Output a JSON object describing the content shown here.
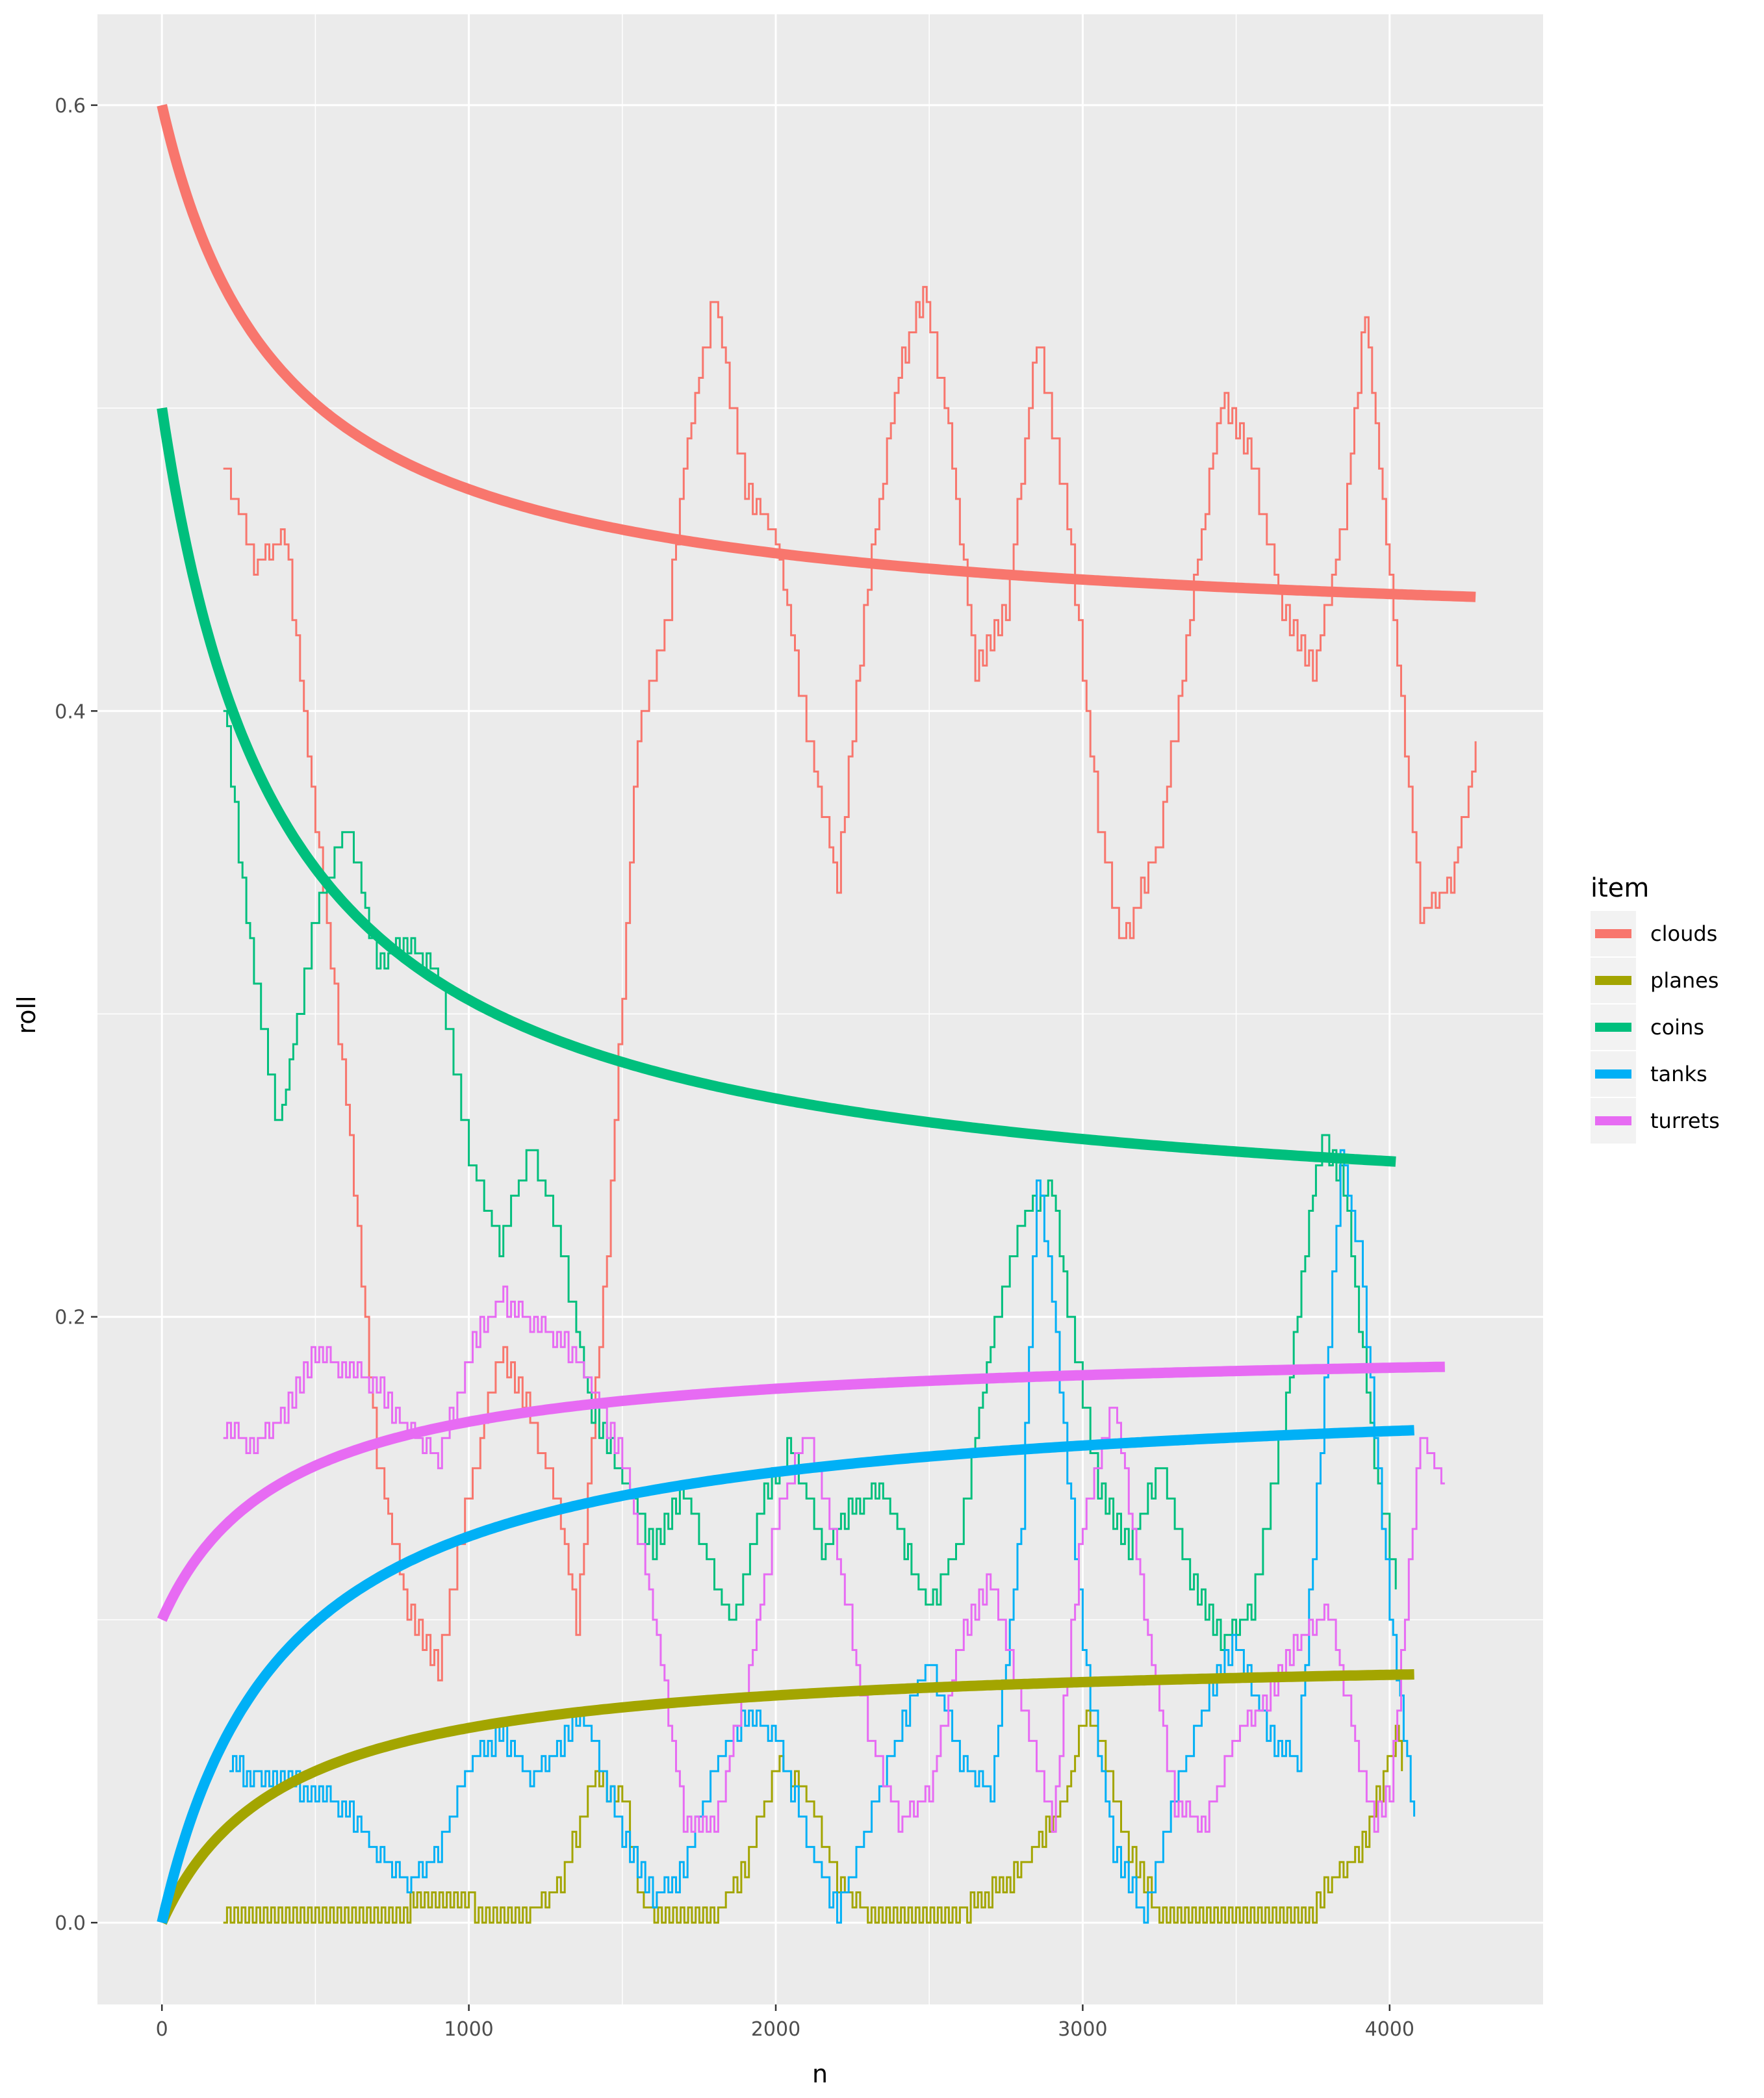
{
  "chart_data": {
    "type": "line",
    "xlabel": "n",
    "ylabel": "roll",
    "xlim": [
      -210,
      4500
    ],
    "ylim": [
      -0.027,
      0.63
    ],
    "x_ticks": [
      0,
      1000,
      2000,
      3000,
      4000
    ],
    "x_tick_labels": [
      "0",
      "1000",
      "2000",
      "3000",
      "4000"
    ],
    "y_ticks": [
      0.0,
      0.2,
      0.4,
      0.6
    ],
    "y_tick_labels": [
      "0.0",
      "0.2",
      "0.4",
      "0.6"
    ],
    "grid": true,
    "legend": {
      "title": "item",
      "position": "right"
    },
    "series": [
      {
        "name": "clouds",
        "color": "#F8766D",
        "expected": {
          "start": 0,
          "end": 4280,
          "final": 0.4225,
          "initial": 0.6,
          "k": 400
        },
        "rolling": [
          [
            200,
            0.48
          ],
          [
            300,
            0.445
          ],
          [
            400,
            0.455
          ],
          [
            500,
            0.36
          ],
          [
            600,
            0.27
          ],
          [
            700,
            0.15
          ],
          [
            800,
            0.1
          ],
          [
            900,
            0.08
          ],
          [
            1000,
            0.14
          ],
          [
            1100,
            0.185
          ],
          [
            1200,
            0.165
          ],
          [
            1300,
            0.13
          ],
          [
            1350,
            0.095
          ],
          [
            1450,
            0.22
          ],
          [
            1550,
            0.39
          ],
          [
            1650,
            0.43
          ],
          [
            1700,
            0.48
          ],
          [
            1800,
            0.535
          ],
          [
            1900,
            0.47
          ],
          [
            2000,
            0.455
          ],
          [
            2100,
            0.39
          ],
          [
            2200,
            0.34
          ],
          [
            2300,
            0.44
          ],
          [
            2400,
            0.51
          ],
          [
            2480,
            0.535
          ],
          [
            2550,
            0.5
          ],
          [
            2650,
            0.41
          ],
          [
            2750,
            0.43
          ],
          [
            2850,
            0.52
          ],
          [
            2950,
            0.46
          ],
          [
            3050,
            0.36
          ],
          [
            3130,
            0.32
          ],
          [
            3250,
            0.355
          ],
          [
            3350,
            0.43
          ],
          [
            3450,
            0.5
          ],
          [
            3550,
            0.48
          ],
          [
            3650,
            0.43
          ],
          [
            3750,
            0.41
          ],
          [
            3850,
            0.46
          ],
          [
            3920,
            0.53
          ],
          [
            4000,
            0.44
          ],
          [
            4100,
            0.33
          ],
          [
            4200,
            0.34
          ],
          [
            4280,
            0.385
          ]
        ]
      },
      {
        "name": "planes",
        "color": "#A3A500",
        "expected": {
          "start": 0,
          "end": 4080,
          "final": 0.09,
          "initial": 0.0,
          "k": 400
        },
        "rolling": [
          [
            200,
            0.0
          ],
          [
            800,
            0.0
          ],
          [
            820,
            0.005
          ],
          [
            1000,
            0.005
          ],
          [
            1020,
            0.0
          ],
          [
            1200,
            0.0
          ],
          [
            1300,
            0.01
          ],
          [
            1400,
            0.045
          ],
          [
            1500,
            0.04
          ],
          [
            1550,
            0.01
          ],
          [
            1580,
            0.0
          ],
          [
            1800,
            0.0
          ],
          [
            1900,
            0.015
          ],
          [
            2000,
            0.05
          ],
          [
            2100,
            0.04
          ],
          [
            2200,
            0.01
          ],
          [
            2300,
            0.0
          ],
          [
            2600,
            0.0
          ],
          [
            2800,
            0.015
          ],
          [
            2950,
            0.04
          ],
          [
            3000,
            0.065
          ],
          [
            3050,
            0.06
          ],
          [
            3150,
            0.02
          ],
          [
            3250,
            0.0
          ],
          [
            3750,
            0.0
          ],
          [
            3800,
            0.01
          ],
          [
            3900,
            0.02
          ],
          [
            3980,
            0.045
          ],
          [
            4020,
            0.06
          ],
          [
            4040,
            0.05
          ]
        ]
      },
      {
        "name": "coins",
        "color": "#00BF7D",
        "expected": {
          "start": 0,
          "end": 4020,
          "final": 0.2265,
          "initial": 0.5,
          "k": 400
        },
        "rolling": [
          [
            200,
            0.4
          ],
          [
            250,
            0.35
          ],
          [
            300,
            0.31
          ],
          [
            380,
            0.26
          ],
          [
            500,
            0.33
          ],
          [
            600,
            0.36
          ],
          [
            700,
            0.315
          ],
          [
            800,
            0.32
          ],
          [
            900,
            0.31
          ],
          [
            950,
            0.28
          ],
          [
            1000,
            0.25
          ],
          [
            1100,
            0.22
          ],
          [
            1200,
            0.255
          ],
          [
            1300,
            0.22
          ],
          [
            1400,
            0.165
          ],
          [
            1500,
            0.145
          ],
          [
            1600,
            0.12
          ],
          [
            1700,
            0.14
          ],
          [
            1800,
            0.11
          ],
          [
            1860,
            0.095
          ],
          [
            1950,
            0.135
          ],
          [
            2050,
            0.155
          ],
          [
            2150,
            0.12
          ],
          [
            2250,
            0.135
          ],
          [
            2350,
            0.14
          ],
          [
            2500,
            0.1
          ],
          [
            2600,
            0.125
          ],
          [
            2700,
            0.19
          ],
          [
            2800,
            0.23
          ],
          [
            2900,
            0.24
          ],
          [
            2950,
            0.2
          ],
          [
            3050,
            0.14
          ],
          [
            3150,
            0.12
          ],
          [
            3250,
            0.15
          ],
          [
            3350,
            0.11
          ],
          [
            3450,
            0.09
          ],
          [
            3550,
            0.1
          ],
          [
            3650,
            0.16
          ],
          [
            3750,
            0.24
          ],
          [
            3780,
            0.255
          ],
          [
            3850,
            0.24
          ],
          [
            3950,
            0.15
          ],
          [
            4000,
            0.12
          ],
          [
            4020,
            0.11
          ]
        ]
      },
      {
        "name": "tanks",
        "color": "#00B0F6",
        "expected": {
          "start": 0,
          "end": 4080,
          "final": 0.1785,
          "initial": 0.0,
          "k": 400
        },
        "rolling": [
          [
            220,
            0.05
          ],
          [
            300,
            0.045
          ],
          [
            400,
            0.045
          ],
          [
            500,
            0.04
          ],
          [
            600,
            0.035
          ],
          [
            700,
            0.02
          ],
          [
            800,
            0.01
          ],
          [
            900,
            0.02
          ],
          [
            1000,
            0.05
          ],
          [
            1100,
            0.06
          ],
          [
            1200,
            0.045
          ],
          [
            1300,
            0.055
          ],
          [
            1350,
            0.065
          ],
          [
            1400,
            0.06
          ],
          [
            1500,
            0.025
          ],
          [
            1600,
            0.005
          ],
          [
            1700,
            0.015
          ],
          [
            1800,
            0.05
          ],
          [
            1900,
            0.065
          ],
          [
            2000,
            0.06
          ],
          [
            2100,
            0.025
          ],
          [
            2200,
            0.0
          ],
          [
            2300,
            0.03
          ],
          [
            2400,
            0.06
          ],
          [
            2500,
            0.085
          ],
          [
            2600,
            0.05
          ],
          [
            2700,
            0.04
          ],
          [
            2800,
            0.13
          ],
          [
            2850,
            0.245
          ],
          [
            2900,
            0.205
          ],
          [
            3000,
            0.09
          ],
          [
            3100,
            0.02
          ],
          [
            3200,
            0.0
          ],
          [
            3300,
            0.04
          ],
          [
            3400,
            0.07
          ],
          [
            3500,
            0.09
          ],
          [
            3600,
            0.06
          ],
          [
            3700,
            0.05
          ],
          [
            3800,
            0.19
          ],
          [
            3840,
            0.25
          ],
          [
            3900,
            0.22
          ],
          [
            4000,
            0.1
          ],
          [
            4080,
            0.03
          ]
        ]
      },
      {
        "name": "turrets",
        "color": "#E76BF3",
        "expected": {
          "start": 0,
          "end": 4180,
          "final": 0.1915,
          "initial": 0.1,
          "k": 400
        },
        "rolling": [
          [
            200,
            0.16
          ],
          [
            300,
            0.155
          ],
          [
            400,
            0.165
          ],
          [
            500,
            0.185
          ],
          [
            600,
            0.18
          ],
          [
            700,
            0.175
          ],
          [
            800,
            0.16
          ],
          [
            900,
            0.15
          ],
          [
            1000,
            0.185
          ],
          [
            1100,
            0.205
          ],
          [
            1200,
            0.195
          ],
          [
            1300,
            0.19
          ],
          [
            1400,
            0.175
          ],
          [
            1500,
            0.15
          ],
          [
            1600,
            0.1
          ],
          [
            1700,
            0.03
          ],
          [
            1800,
            0.03
          ],
          [
            1900,
            0.075
          ],
          [
            2000,
            0.13
          ],
          [
            2100,
            0.16
          ],
          [
            2200,
            0.12
          ],
          [
            2300,
            0.06
          ],
          [
            2400,
            0.03
          ],
          [
            2500,
            0.04
          ],
          [
            2600,
            0.09
          ],
          [
            2700,
            0.11
          ],
          [
            2800,
            0.07
          ],
          [
            2900,
            0.03
          ],
          [
            3000,
            0.13
          ],
          [
            3100,
            0.17
          ],
          [
            3200,
            0.1
          ],
          [
            3300,
            0.035
          ],
          [
            3400,
            0.03
          ],
          [
            3500,
            0.06
          ],
          [
            3600,
            0.07
          ],
          [
            3700,
            0.09
          ],
          [
            3800,
            0.1
          ],
          [
            3900,
            0.05
          ],
          [
            3950,
            0.03
          ],
          [
            4000,
            0.04
          ],
          [
            4100,
            0.16
          ],
          [
            4180,
            0.14
          ]
        ]
      }
    ]
  }
}
